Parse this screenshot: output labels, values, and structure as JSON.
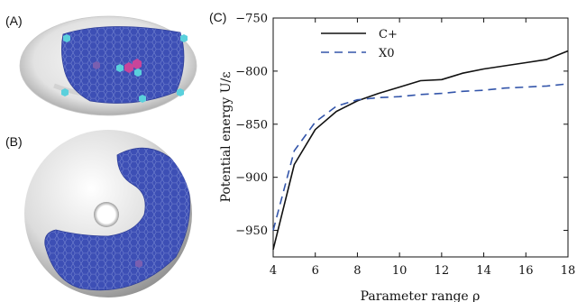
{
  "panels": {
    "a_label": "(A)",
    "b_label": "(B)",
    "c_label": "(C)"
  },
  "colors": {
    "cplus": "#111111",
    "x0": "#3355aa",
    "hex_fill": "#3d4fb5",
    "hex_stroke": "#6a78c8",
    "defect_cyan": "#5ad0dc",
    "defect_magenta": "#c8459a",
    "defect_purple": "#7a5fb0"
  },
  "chart_data": {
    "type": "line",
    "xlabel": "Parameter range ρ",
    "ylabel": "Potential energy U/ε",
    "xlim": [
      4,
      18
    ],
    "ylim": [
      -975,
      -750
    ],
    "xticks": [
      "4",
      "6",
      "8",
      "10",
      "12",
      "14",
      "16",
      "18"
    ],
    "yticks": [
      "−750",
      "−800",
      "−850",
      "−900",
      "−950"
    ],
    "xtick_values": [
      4,
      6,
      8,
      10,
      12,
      14,
      16,
      18
    ],
    "ytick_values": [
      -750,
      -800,
      -850,
      -900,
      -950
    ],
    "legend_position": "top-left",
    "series": [
      {
        "name": "C+",
        "style": "solid",
        "x": [
          4,
          5,
          6,
          7,
          8,
          9,
          10,
          11,
          12,
          13,
          14,
          15,
          16,
          17,
          18
        ],
        "y": [
          -968,
          -888,
          -855,
          -838,
          -828,
          -821,
          -815,
          -809,
          -808,
          -802,
          -798,
          -795,
          -792,
          -789,
          -781
        ]
      },
      {
        "name": "X0",
        "style": "dashed",
        "x": [
          4,
          5,
          6,
          7,
          8,
          9,
          10,
          11,
          12,
          13,
          14,
          15,
          16,
          17,
          18
        ],
        "y": [
          -950,
          -875,
          -848,
          -833,
          -827,
          -825,
          -824,
          -822,
          -821,
          -819,
          -818,
          -816,
          -815,
          -814,
          -812
        ]
      }
    ]
  }
}
